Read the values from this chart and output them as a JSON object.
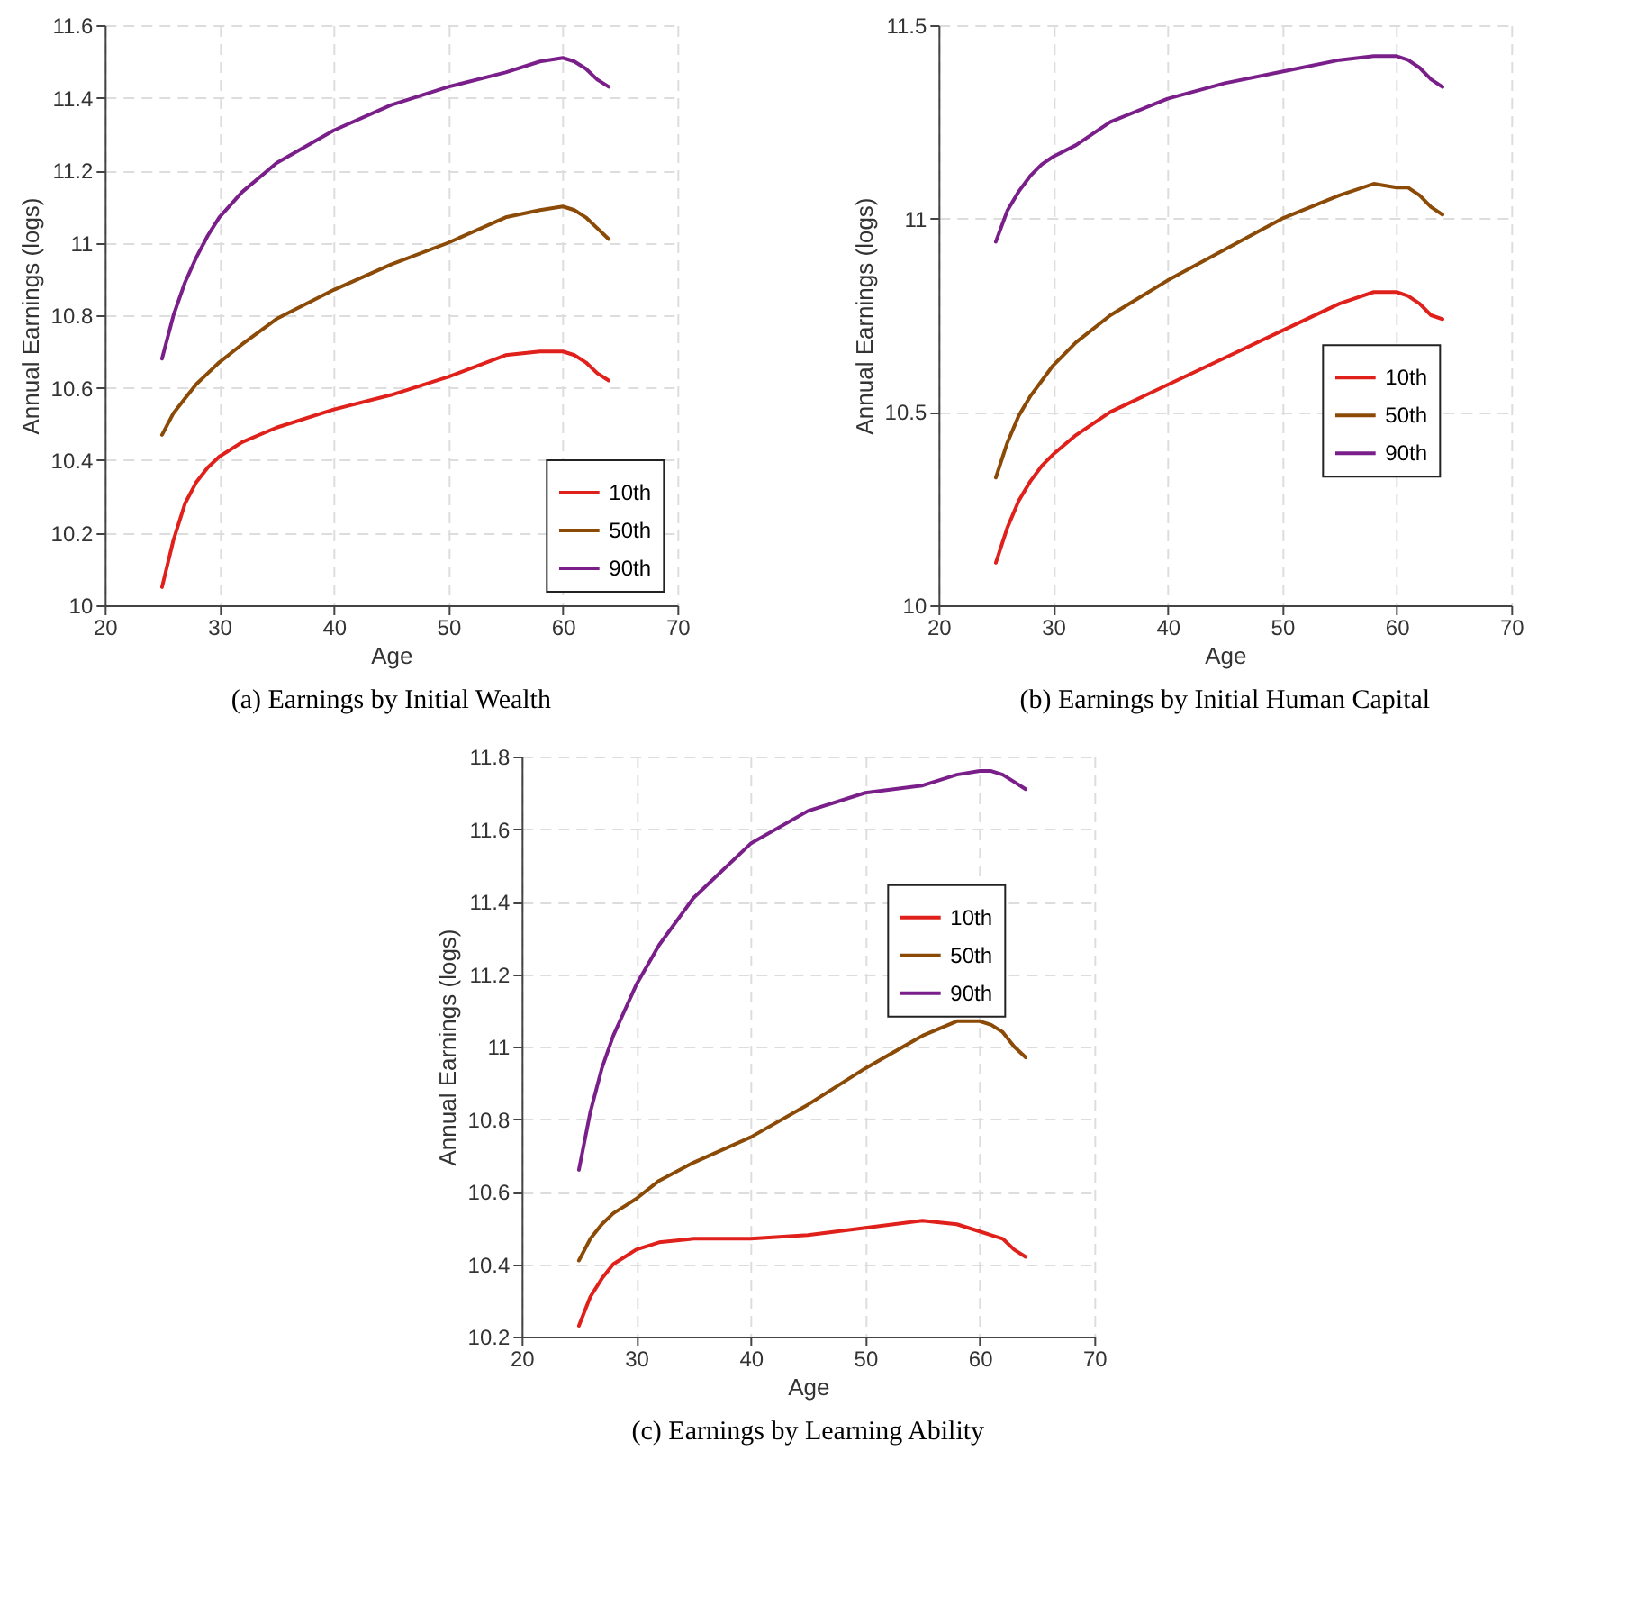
{
  "chart_data": [
    {
      "type": "line",
      "title": "(a) Earnings by Initial Wealth",
      "xlabel": "Age",
      "ylabel": "Annual Earnings (logs)",
      "x": [
        25,
        26,
        27,
        28,
        29,
        30,
        32,
        35,
        40,
        45,
        50,
        55,
        58,
        60,
        61,
        62,
        63,
        64
      ],
      "series": [
        {
          "name": "10th",
          "color": "#e0201b",
          "values": [
            10.05,
            10.18,
            10.28,
            10.34,
            10.38,
            10.41,
            10.45,
            10.49,
            10.54,
            10.58,
            10.63,
            10.69,
            10.7,
            10.7,
            10.69,
            10.67,
            10.64,
            10.62
          ]
        },
        {
          "name": "50th",
          "color": "#8b4a06",
          "values": [
            10.47,
            10.53,
            10.57,
            10.61,
            10.64,
            10.67,
            10.72,
            10.79,
            10.87,
            10.94,
            11.0,
            11.07,
            11.09,
            11.1,
            11.09,
            11.07,
            11.04,
            11.01
          ]
        },
        {
          "name": "90th",
          "color": "#7a1f8a",
          "values": [
            10.68,
            10.8,
            10.89,
            10.96,
            11.02,
            11.07,
            11.14,
            11.22,
            11.31,
            11.38,
            11.43,
            11.47,
            11.5,
            11.51,
            11.5,
            11.48,
            11.45,
            11.43
          ]
        }
      ],
      "xlim": [
        20,
        70
      ],
      "xticks": [
        20,
        30,
        40,
        50,
        60,
        70
      ],
      "ylim": [
        10,
        11.6
      ],
      "yticks": [
        10,
        10.2,
        10.4,
        10.6,
        10.8,
        11,
        11.2,
        11.4,
        11.6
      ],
      "grid": true,
      "legend": "bottom right",
      "line_style": "solid"
    },
    {
      "type": "line",
      "title": "(b) Earnings by Initial Human Capital",
      "xlabel": "Age",
      "ylabel": "Annual Earnings (logs)",
      "x": [
        25,
        26,
        27,
        28,
        29,
        30,
        32,
        35,
        40,
        45,
        50,
        55,
        58,
        60,
        61,
        62,
        63,
        64
      ],
      "series": [
        {
          "name": "10th",
          "color": "#e0201b",
          "values": [
            10.11,
            10.2,
            10.27,
            10.32,
            10.36,
            10.39,
            10.44,
            10.5,
            10.57,
            10.64,
            10.71,
            10.78,
            10.81,
            10.81,
            10.8,
            10.78,
            10.75,
            10.74
          ]
        },
        {
          "name": "50th",
          "color": "#8b4a06",
          "values": [
            10.33,
            10.42,
            10.49,
            10.54,
            10.58,
            10.62,
            10.68,
            10.75,
            10.84,
            10.92,
            11.0,
            11.06,
            11.09,
            11.08,
            11.08,
            11.06,
            11.03,
            11.01
          ]
        },
        {
          "name": "90th",
          "color": "#7a1f8a",
          "values": [
            10.94,
            11.02,
            11.07,
            11.11,
            11.14,
            11.16,
            11.19,
            11.25,
            11.31,
            11.35,
            11.38,
            11.41,
            11.42,
            11.42,
            11.41,
            11.39,
            11.36,
            11.34
          ]
        }
      ],
      "xlim": [
        20,
        70
      ],
      "xticks": [
        20,
        30,
        40,
        50,
        60,
        70
      ],
      "ylim": [
        10,
        11.5
      ],
      "yticks": [
        10,
        10.5,
        11,
        11.5
      ],
      "grid": true,
      "legend": "right",
      "line_style": "solid"
    },
    {
      "type": "line",
      "title": "(c) Earnings by Learning Ability",
      "xlabel": "Age",
      "ylabel": "Annual Earnings (logs)",
      "x": [
        25,
        26,
        27,
        28,
        29,
        30,
        32,
        35,
        40,
        45,
        50,
        55,
        58,
        60,
        61,
        62,
        63,
        64
      ],
      "series": [
        {
          "name": "10th",
          "color": "#e0201b",
          "values": [
            10.23,
            10.31,
            10.36,
            10.4,
            10.42,
            10.44,
            10.46,
            10.47,
            10.47,
            10.48,
            10.5,
            10.52,
            10.51,
            10.49,
            10.48,
            10.47,
            10.44,
            10.42
          ]
        },
        {
          "name": "50th",
          "color": "#8b4a06",
          "values": [
            10.41,
            10.47,
            10.51,
            10.54,
            10.56,
            10.58,
            10.63,
            10.68,
            10.75,
            10.84,
            10.94,
            11.03,
            11.07,
            11.07,
            11.06,
            11.04,
            11.0,
            10.97
          ]
        },
        {
          "name": "90th",
          "color": "#7a1f8a",
          "values": [
            10.66,
            10.82,
            10.94,
            11.03,
            11.1,
            11.17,
            11.28,
            11.41,
            11.56,
            11.65,
            11.7,
            11.72,
            11.75,
            11.76,
            11.76,
            11.75,
            11.73,
            11.71
          ]
        }
      ],
      "xlim": [
        20,
        70
      ],
      "xticks": [
        20,
        30,
        40,
        50,
        60,
        70
      ],
      "ylim": [
        10.2,
        11.8
      ],
      "yticks": [
        10.2,
        10.4,
        10.6,
        10.8,
        11,
        11.2,
        11.4,
        11.6,
        11.8
      ],
      "grid": true,
      "legend": "top right",
      "line_style": "solid"
    }
  ]
}
